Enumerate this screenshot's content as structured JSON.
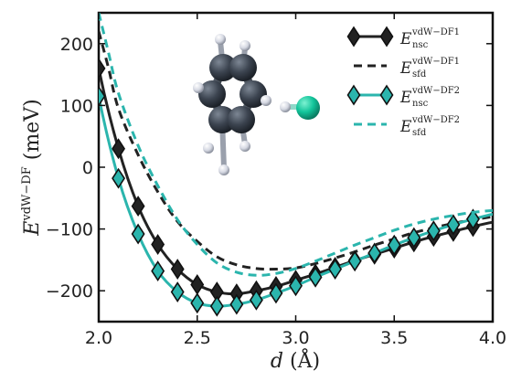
{
  "chart_data": {
    "type": "line",
    "xlabel": "d (Å)",
    "ylabel": "E^vdW−DF (meV)",
    "xlim": [
      2.0,
      4.0
    ],
    "ylim": [
      -250,
      250
    ],
    "xticks": [
      "2.0",
      "2.5",
      "3.0",
      "3.5",
      "4.0"
    ],
    "yticks": [
      "200",
      "100",
      "0",
      "−100",
      "−200"
    ],
    "grid": false,
    "legend_position": "top-right",
    "series": [
      {
        "name": "E nsc vdW−DF1",
        "legend": {
          "base": "E",
          "sup": "vdW−DF1",
          "sub": "nsc"
        },
        "style": "solid-diamond",
        "color": "#222222",
        "marker_fill": "#222222",
        "x": [
          2.0,
          2.1,
          2.2,
          2.3,
          2.4,
          2.5,
          2.6,
          2.7,
          2.8,
          2.9,
          3.0,
          3.1,
          3.2,
          3.3,
          3.4,
          3.5,
          3.6,
          3.7,
          3.8,
          3.9
        ],
        "y": [
          160,
          30,
          -63,
          -125,
          -165,
          -190,
          -202,
          -205,
          -200,
          -193,
          -183,
          -173,
          -162,
          -151,
          -141,
          -131,
          -121,
          -112,
          -104,
          -96
        ]
      },
      {
        "name": "E sfd vdW−DF1",
        "legend": {
          "base": "E",
          "sup": "vdW−DF1",
          "sub": "sfd"
        },
        "style": "dashed",
        "color": "#222222",
        "x": [
          2.0,
          2.05,
          2.1,
          2.2,
          2.3,
          2.4,
          2.5,
          2.6,
          2.7,
          2.8,
          2.9,
          3.0,
          3.1,
          3.2,
          3.3,
          3.4,
          3.5,
          3.6,
          3.7,
          3.8,
          3.9,
          4.0
        ],
        "y": [
          220,
          160,
          95,
          20,
          -40,
          -88,
          -120,
          -145,
          -158,
          -164,
          -165,
          -163,
          -156,
          -147,
          -137,
          -126,
          -116,
          -106,
          -98,
          -91,
          -85,
          -80
        ]
      },
      {
        "name": "E nsc vdW−DF2",
        "legend": {
          "base": "E",
          "sup": "vdW−DF2",
          "sub": "nsc"
        },
        "style": "solid-diamond",
        "color": "#2bb5ad",
        "marker_fill": "#2bb5ad",
        "x": [
          2.0,
          2.1,
          2.2,
          2.3,
          2.4,
          2.5,
          2.6,
          2.7,
          2.8,
          2.9,
          3.0,
          3.1,
          3.2,
          3.3,
          3.4,
          3.5,
          3.6,
          3.7,
          3.8,
          3.9
        ],
        "y": [
          115,
          -18,
          -108,
          -168,
          -202,
          -220,
          -225,
          -222,
          -215,
          -204,
          -192,
          -178,
          -165,
          -152,
          -139,
          -126,
          -114,
          -103,
          -93,
          -84
        ]
      },
      {
        "name": "E sfd vdW−DF2",
        "legend": {
          "base": "E",
          "sup": "vdW−DF2",
          "sub": "sfd"
        },
        "style": "dashed",
        "color": "#2bb5ad",
        "x": [
          2.0,
          2.05,
          2.1,
          2.2,
          2.3,
          2.4,
          2.5,
          2.6,
          2.7,
          2.8,
          2.9,
          3.0,
          3.1,
          3.2,
          3.3,
          3.4,
          3.5,
          3.6,
          3.7,
          3.8,
          3.9,
          4.0
        ],
        "y": [
          250,
          185,
          120,
          35,
          -30,
          -85,
          -125,
          -155,
          -170,
          -175,
          -172,
          -164,
          -152,
          -139,
          -126,
          -114,
          -102,
          -92,
          -84,
          -78,
          -73,
          -70
        ]
      }
    ]
  },
  "inset": {
    "kind": "molecule-rendering",
    "description_icon": "benzene-and-halide-molecule-icon",
    "colors": {
      "carbon": "#3c4450",
      "hydrogen": "#e8e8ef",
      "halogen": "#12c49a"
    }
  },
  "colors": {
    "black": "#222222",
    "teal": "#2bb5ad",
    "frame": "#111111"
  }
}
